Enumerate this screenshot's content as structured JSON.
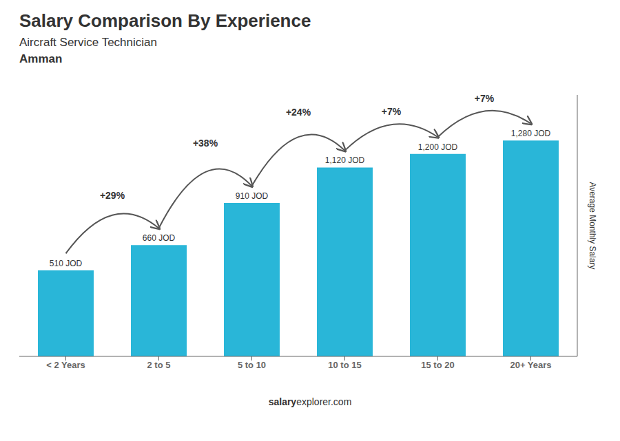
{
  "chart_data": {
    "type": "bar",
    "title": "Salary Comparison By Experience",
    "subtitle": "Aircraft Service Technician",
    "city": "Amman",
    "ylabel": "Average Monthly Salary",
    "footer": [
      "salary",
      "explorer.com"
    ],
    "categories": [
      "< 2 Years",
      "2 to 5",
      "5 to 10",
      "10 to 15",
      "15 to 20",
      "20+ Years"
    ],
    "values": [
      510,
      660,
      910,
      1120,
      1200,
      1280
    ],
    "value_labels": [
      "510 JOD",
      "660 JOD",
      "910 JOD",
      "1,120 JOD",
      "1,200 JOD",
      "1,280 JOD"
    ],
    "data_labels": true,
    "annotations": [
      "+29%",
      "+38%",
      "+24%",
      "+7%",
      "+7%"
    ],
    "color": "#29b6d8",
    "ylim": [
      0,
      1550
    ],
    "tick_labels": "x",
    "grid": false
  }
}
